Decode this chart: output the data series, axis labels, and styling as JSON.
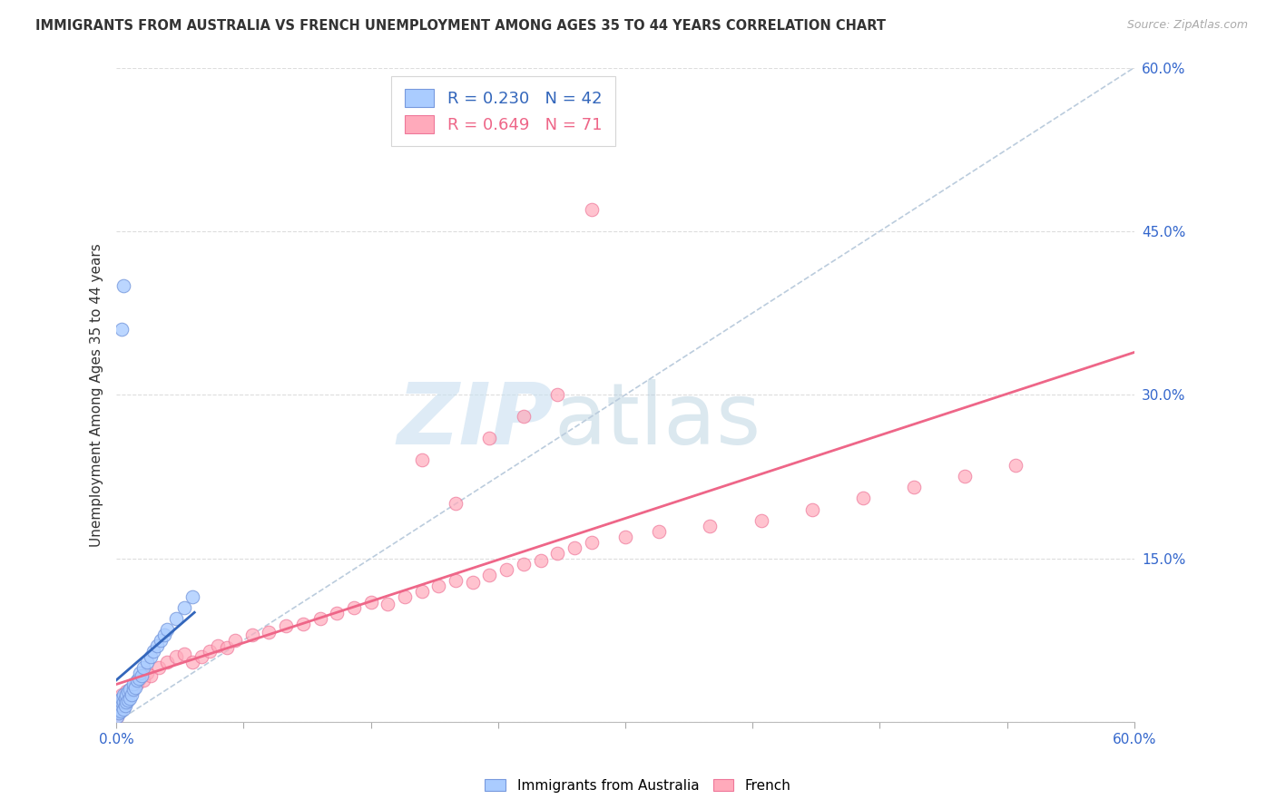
{
  "title": "IMMIGRANTS FROM AUSTRALIA VS FRENCH UNEMPLOYMENT AMONG AGES 35 TO 44 YEARS CORRELATION CHART",
  "source": "Source: ZipAtlas.com",
  "ylabel": "Unemployment Among Ages 35 to 44 years",
  "legend_label1": "Immigrants from Australia",
  "legend_label2": "French",
  "R1": 0.23,
  "N1": 42,
  "R2": 0.649,
  "N2": 71,
  "xlim": [
    0.0,
    0.6
  ],
  "ylim": [
    0.0,
    0.6
  ],
  "color_blue_fill": "#AACCFF",
  "color_blue_edge": "#7799DD",
  "color_blue_line": "#3366BB",
  "color_pink_fill": "#FFAABB",
  "color_pink_edge": "#EE7799",
  "color_pink_line": "#EE6688",
  "color_dashed": "#BBCCDD",
  "watermark_color": "#C8DFF0",
  "background": "#FFFFFF",
  "axis_label_color": "#3366CC",
  "title_color": "#333333",
  "aus_x": [
    0.0005,
    0.001,
    0.001,
    0.0015,
    0.002,
    0.002,
    0.0025,
    0.003,
    0.003,
    0.003,
    0.004,
    0.004,
    0.004,
    0.005,
    0.005,
    0.006,
    0.006,
    0.007,
    0.007,
    0.008,
    0.008,
    0.009,
    0.01,
    0.01,
    0.011,
    0.012,
    0.013,
    0.014,
    0.015,
    0.016,
    0.018,
    0.02,
    0.022,
    0.024,
    0.026,
    0.028,
    0.03,
    0.035,
    0.04,
    0.045,
    0.004,
    0.003
  ],
  "aus_y": [
    0.005,
    0.01,
    0.015,
    0.008,
    0.012,
    0.02,
    0.01,
    0.015,
    0.018,
    0.022,
    0.012,
    0.018,
    0.025,
    0.015,
    0.022,
    0.018,
    0.025,
    0.02,
    0.028,
    0.022,
    0.03,
    0.025,
    0.03,
    0.035,
    0.032,
    0.038,
    0.04,
    0.045,
    0.042,
    0.05,
    0.055,
    0.06,
    0.065,
    0.07,
    0.075,
    0.08,
    0.085,
    0.095,
    0.105,
    0.115,
    0.4,
    0.36
  ],
  "fr_x": [
    0.0005,
    0.001,
    0.001,
    0.0015,
    0.002,
    0.002,
    0.0025,
    0.003,
    0.003,
    0.003,
    0.004,
    0.004,
    0.005,
    0.005,
    0.006,
    0.006,
    0.007,
    0.008,
    0.009,
    0.01,
    0.012,
    0.014,
    0.016,
    0.018,
    0.02,
    0.025,
    0.03,
    0.035,
    0.04,
    0.045,
    0.05,
    0.055,
    0.06,
    0.065,
    0.07,
    0.08,
    0.09,
    0.1,
    0.11,
    0.12,
    0.13,
    0.14,
    0.15,
    0.16,
    0.17,
    0.18,
    0.19,
    0.2,
    0.21,
    0.22,
    0.23,
    0.24,
    0.25,
    0.26,
    0.27,
    0.28,
    0.3,
    0.32,
    0.35,
    0.38,
    0.41,
    0.44,
    0.47,
    0.5,
    0.53,
    0.18,
    0.2,
    0.22,
    0.24,
    0.26,
    0.28
  ],
  "fr_y": [
    0.005,
    0.008,
    0.012,
    0.01,
    0.015,
    0.02,
    0.012,
    0.018,
    0.022,
    0.025,
    0.015,
    0.02,
    0.018,
    0.025,
    0.022,
    0.028,
    0.025,
    0.03,
    0.028,
    0.032,
    0.035,
    0.04,
    0.038,
    0.045,
    0.042,
    0.05,
    0.055,
    0.06,
    0.062,
    0.055,
    0.06,
    0.065,
    0.07,
    0.068,
    0.075,
    0.08,
    0.082,
    0.088,
    0.09,
    0.095,
    0.1,
    0.105,
    0.11,
    0.108,
    0.115,
    0.12,
    0.125,
    0.13,
    0.128,
    0.135,
    0.14,
    0.145,
    0.148,
    0.155,
    0.16,
    0.165,
    0.17,
    0.175,
    0.18,
    0.185,
    0.195,
    0.205,
    0.215,
    0.225,
    0.235,
    0.24,
    0.2,
    0.26,
    0.28,
    0.3,
    0.47
  ]
}
